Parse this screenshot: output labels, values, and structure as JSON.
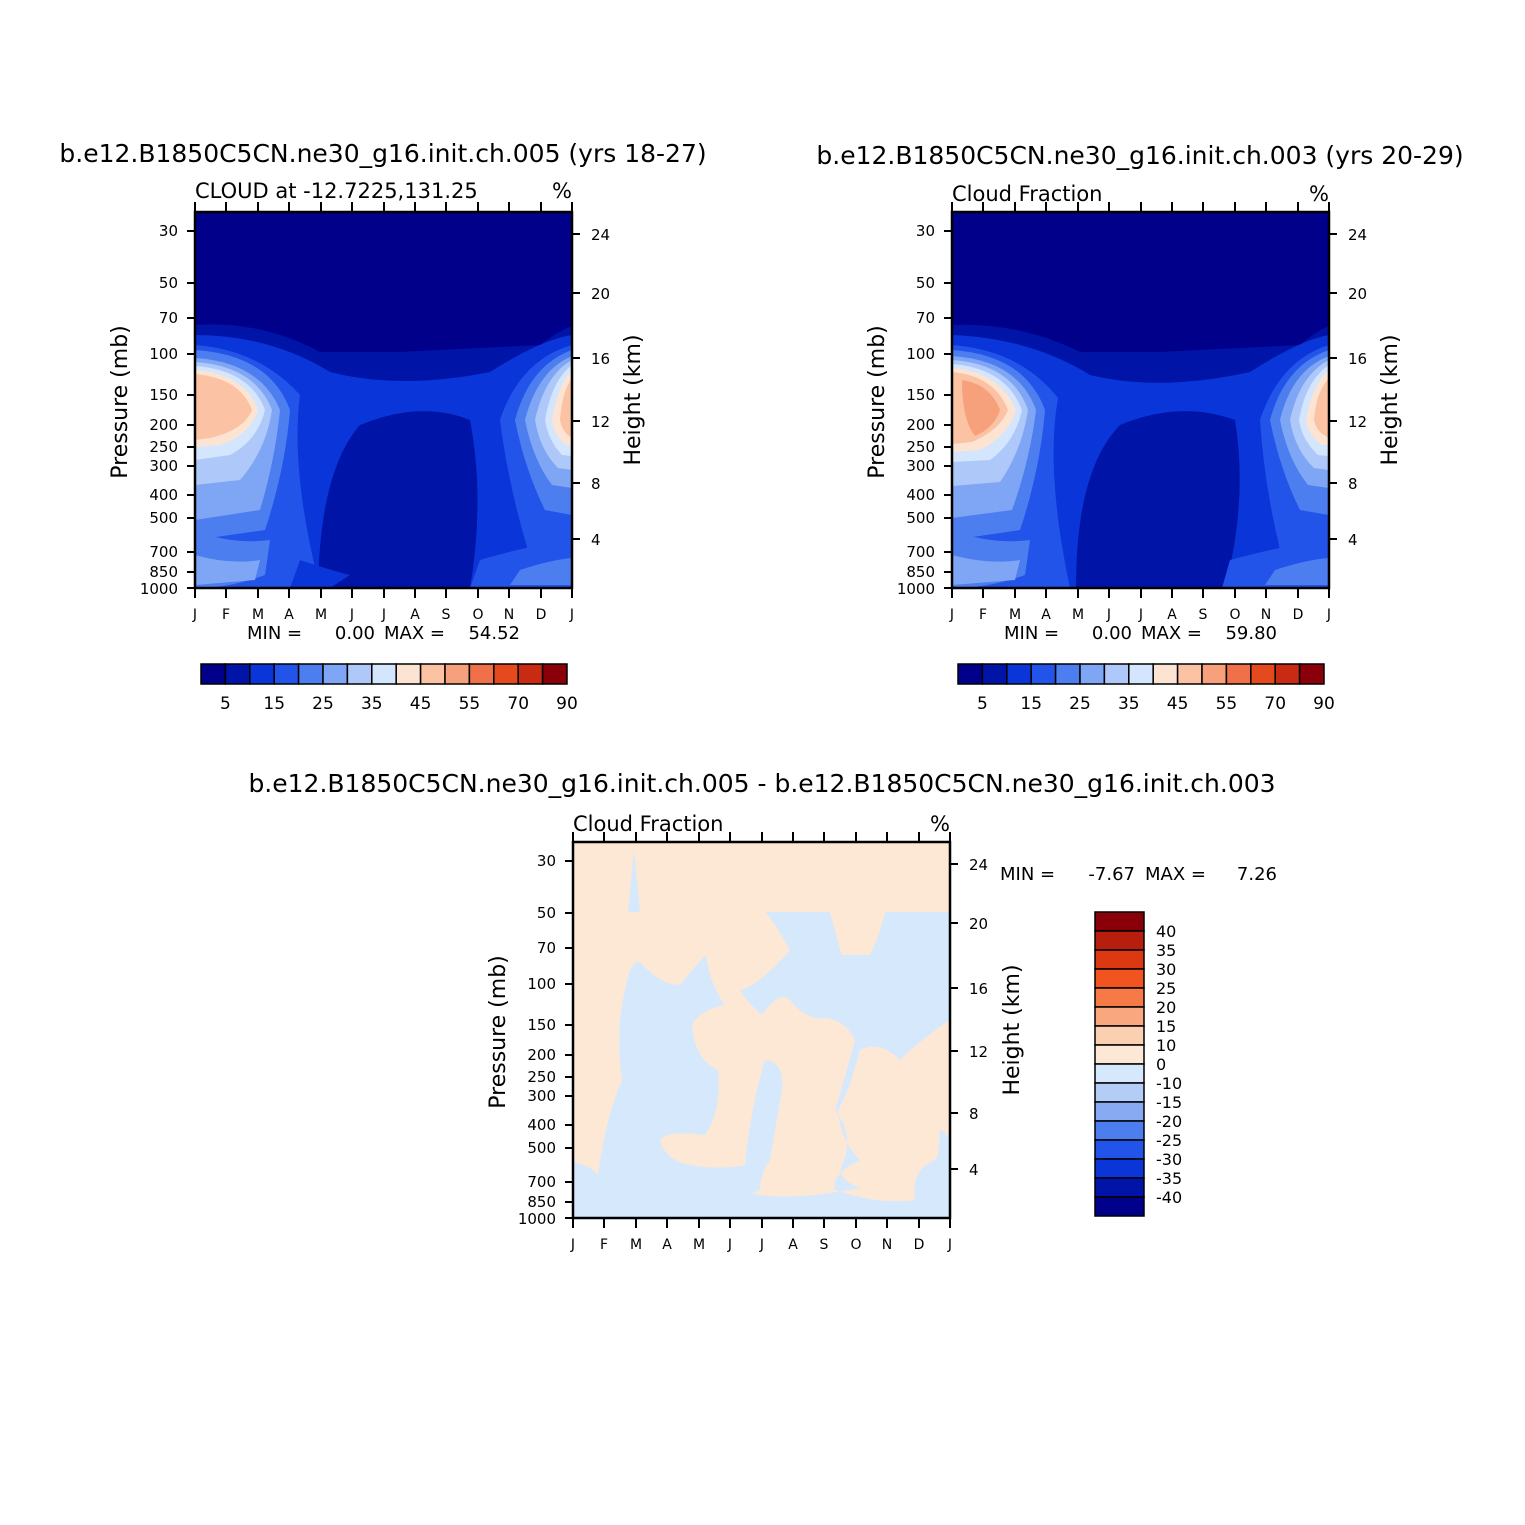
{
  "months": [
    "J",
    "F",
    "M",
    "A",
    "M",
    "J",
    "J",
    "A",
    "S",
    "O",
    "N",
    "D",
    "J"
  ],
  "pressure_ticks": [
    "30",
    "50",
    "70",
    "100",
    "150",
    "200",
    "250",
    "300",
    "400",
    "500",
    "700",
    "850",
    "1000"
  ],
  "height_ticks": [
    "24",
    "20",
    "16",
    "12",
    "8",
    "4"
  ],
  "left_axis_label": "Pressure (mb)",
  "right_axis_label": "Height (km)",
  "unit": "%",
  "colors": {
    "abs_scale": [
      "#00008a",
      "#0015a8",
      "#0a35d8",
      "#2354ea",
      "#4d7ef0",
      "#7ea6f5",
      "#aec8fa",
      "#d4e6fd",
      "#fde4d2",
      "#fbc3a4",
      "#f7a07c",
      "#f0704a",
      "#e54a1e",
      "#c82a12",
      "#8a0008"
    ],
    "diff_pos": "#fde8d6",
    "diff_neg": "#d6e9fc"
  },
  "chart_data": [
    {
      "type": "contour",
      "title": "b.e12.B1850C5CN.ne30_g16.init.ch.005 (yrs 18-27)",
      "subtitle": "CLOUD at -12.7225,131.25",
      "unit": "%",
      "xlabel": "",
      "ylabel": "Pressure (mb)",
      "y2label": "Height (km)",
      "stats": {
        "min_label": "MIN =",
        "min": "0.00",
        "max_label": "MAX =",
        "max": "54.52"
      },
      "colorbar_labels": [
        "5",
        "15",
        "25",
        "35",
        "45",
        "55",
        "70",
        "90"
      ],
      "peak_max": 54.52
    },
    {
      "type": "contour",
      "title": "b.e12.B1850C5CN.ne30_g16.init.ch.003 (yrs 20-29)",
      "subtitle": "Cloud Fraction",
      "unit": "%",
      "xlabel": "",
      "ylabel": "Pressure (mb)",
      "y2label": "Height (km)",
      "stats": {
        "min_label": "MIN =",
        "min": "0.00",
        "max_label": "MAX =",
        "max": "59.80"
      },
      "colorbar_labels": [
        "5",
        "15",
        "25",
        "35",
        "45",
        "55",
        "70",
        "90"
      ],
      "peak_max": 59.8
    },
    {
      "type": "contour-difference",
      "title": "b.e12.B1850C5CN.ne30_g16.init.ch.005 - b.e12.B1850C5CN.ne30_g16.init.ch.003",
      "subtitle": "Cloud Fraction",
      "unit": "%",
      "xlabel": "",
      "ylabel": "Pressure (mb)",
      "y2label": "Height (km)",
      "stats": {
        "min_label": "MIN =",
        "min": "-7.67",
        "max_label": "MAX =",
        "max": "7.26"
      },
      "colorbar_labels": [
        "40",
        "35",
        "30",
        "25",
        "20",
        "15",
        "10",
        "0",
        "-10",
        "-15",
        "-20",
        "-25",
        "-30",
        "-35",
        "-40"
      ]
    }
  ]
}
